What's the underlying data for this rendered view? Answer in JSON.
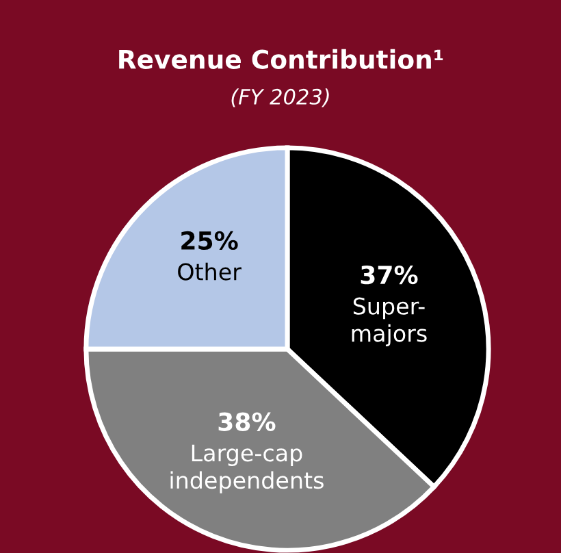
{
  "chart_data": {
    "type": "pie",
    "title": "Revenue Contribution¹",
    "subtitle": "(FY 2023)",
    "categories": [
      "Super-\nmajors",
      "Large-cap\nindependents",
      "Other"
    ],
    "values": [
      37,
      38,
      25
    ],
    "colors": [
      "#000000",
      "#808080",
      "#b4c7e7"
    ],
    "value_labels": [
      "37%",
      "38%",
      "25%"
    ]
  }
}
